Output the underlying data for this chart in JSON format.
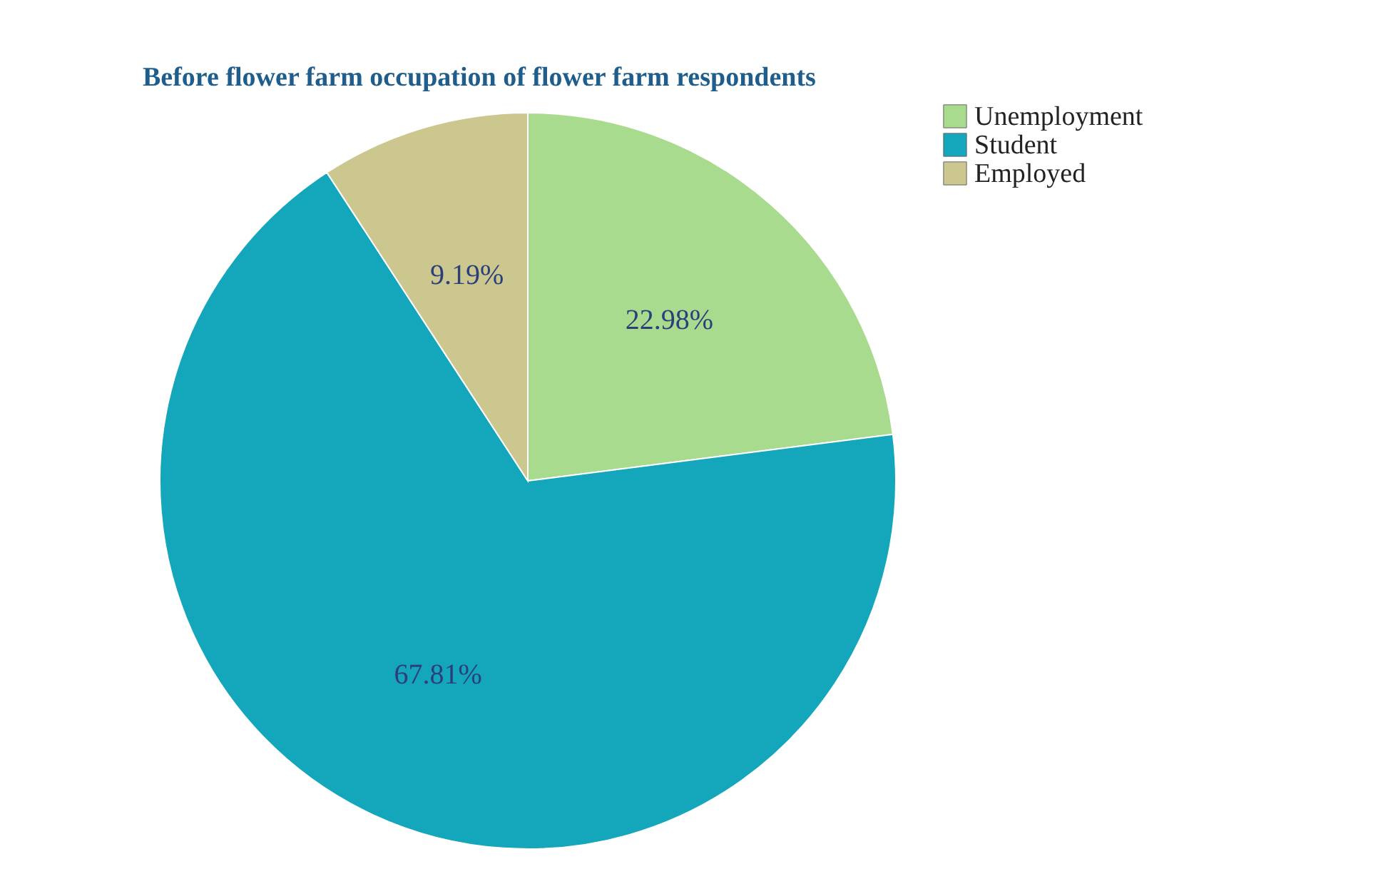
{
  "chart_data": {
    "type": "pie",
    "title": "Before flower farm occupation of flower farm respondents",
    "categories": [
      "Unemployment",
      "Student",
      "Employed"
    ],
    "values": [
      22.98,
      67.81,
      9.19
    ],
    "value_labels": [
      "22.98%",
      "67.81%",
      "9.19%"
    ],
    "colors": [
      "#a9db8e",
      "#14a6ba",
      "#cbc78e"
    ],
    "legend": "right"
  }
}
